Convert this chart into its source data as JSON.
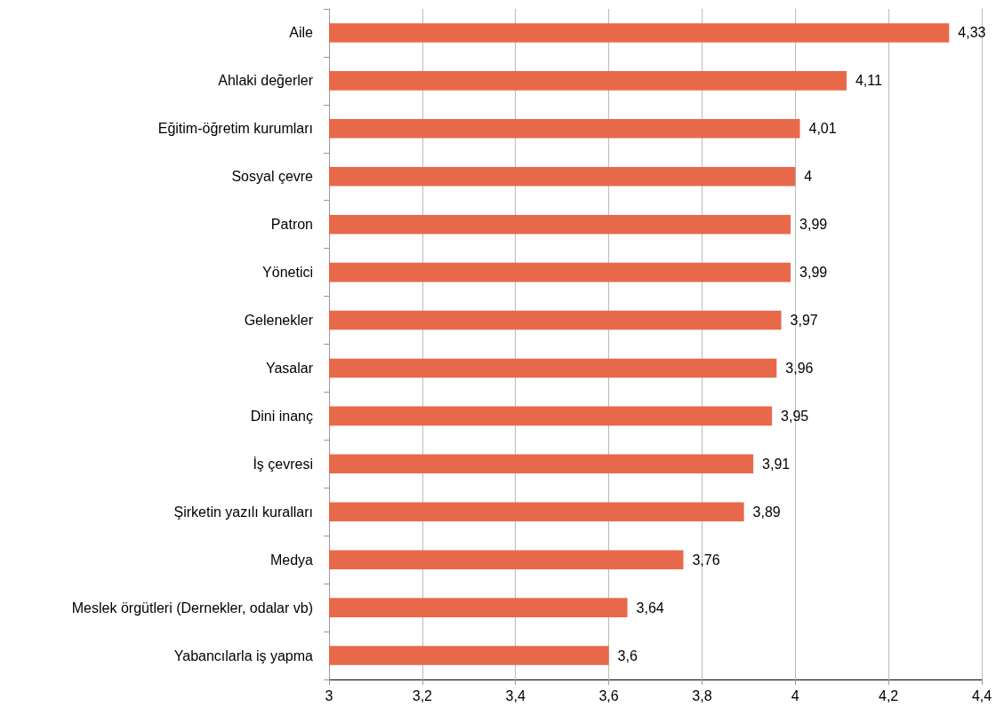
{
  "chart_data": {
    "type": "bar",
    "orientation": "horizontal",
    "categories": [
      "Aile",
      "Ahlaki değerler",
      "Eğitim-öğretim kurumları",
      "Sosyal çevre",
      "Patron",
      "Yönetici",
      "Gelenekler",
      "Yasalar",
      "Dini inanç",
      "İş çevresi",
      "Şirketin yazılı kuralları",
      "Medya",
      "Meslek örgütleri (Dernekler, odalar vb)",
      "Yabancılarla iş yapma"
    ],
    "values": [
      4.33,
      4.11,
      4.01,
      4,
      3.99,
      3.99,
      3.97,
      3.96,
      3.95,
      3.91,
      3.89,
      3.76,
      3.64,
      3.6
    ],
    "value_labels": [
      "4,33",
      "4,11",
      "4,01",
      "4",
      "3,99",
      "3,99",
      "3,97",
      "3,96",
      "3,95",
      "3,91",
      "3,89",
      "3,76",
      "3,64",
      "3,6"
    ],
    "color": "#e8694a",
    "xlim": [
      3,
      4.4
    ],
    "xticks": [
      3,
      {
        "value": 3.2,
        "label": "3,2"
      },
      {
        "value": 3.4,
        "label": "3,4"
      },
      {
        "value": 3.6,
        "label": "3,6"
      },
      {
        "value": 3.8,
        "label": "3,8"
      },
      4,
      {
        "value": 4.2,
        "label": "4,2"
      },
      {
        "value": 4.4,
        "label": "4,4"
      }
    ],
    "grid": "x"
  }
}
